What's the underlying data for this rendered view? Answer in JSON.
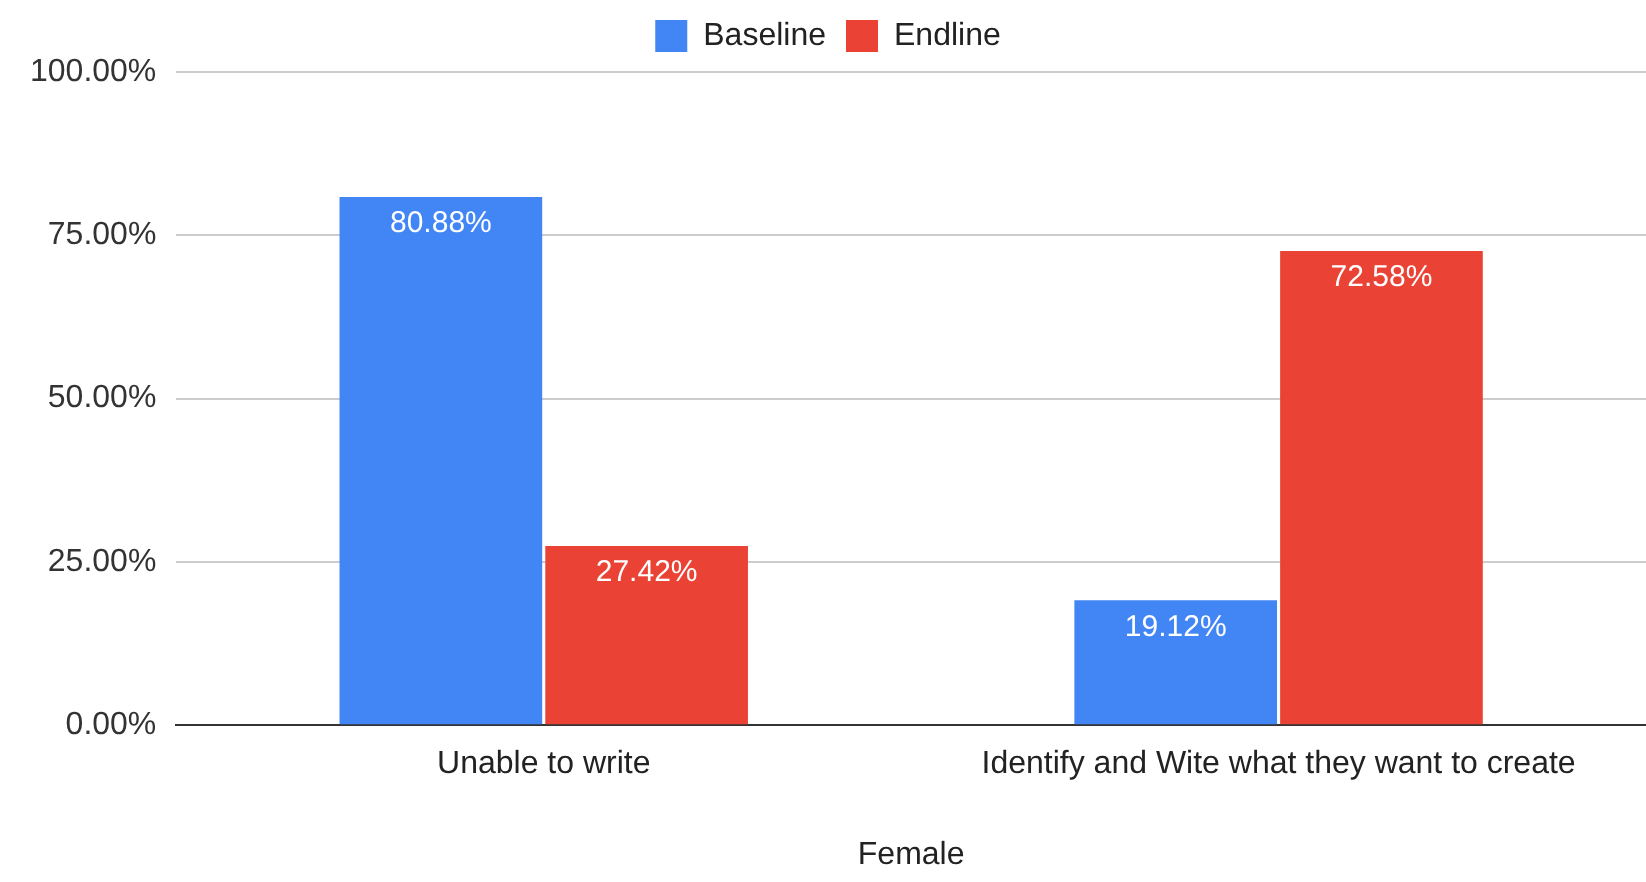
{
  "chart_data": {
    "type": "bar",
    "xlabel": "Female",
    "categories": [
      "Unable to write",
      "Identify and Wite what they want to create"
    ],
    "series": [
      {
        "name": "Baseline",
        "color": "#4285f4",
        "values": [
          80.88,
          19.12
        ],
        "value_labels": [
          "80.88%",
          "19.12%"
        ]
      },
      {
        "name": "Endline",
        "color": "#ea4335",
        "values": [
          27.42,
          72.58
        ],
        "value_labels": [
          "27.42%",
          "72.58%"
        ]
      }
    ],
    "ylim": [
      0,
      100
    ],
    "yticks": [
      {
        "value": 0,
        "label": "0.00%"
      },
      {
        "value": 25,
        "label": "25.00%"
      },
      {
        "value": 50,
        "label": "50.00%"
      },
      {
        "value": 75,
        "label": "75.00%"
      },
      {
        "value": 100,
        "label": "100.00%"
      }
    ],
    "grid": "y",
    "legend": "top"
  }
}
